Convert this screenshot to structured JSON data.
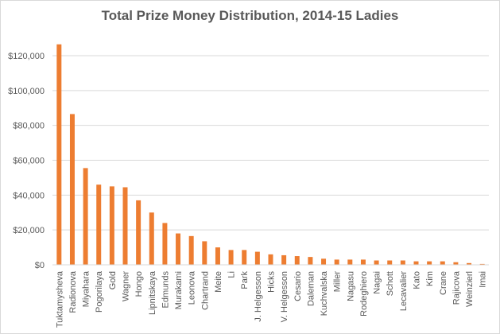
{
  "chart_data": {
    "type": "bar",
    "title": "Total Prize Money Distribution, 2014-15 Ladies",
    "xlabel": "",
    "ylabel": "",
    "ylim": [
      0,
      120000
    ],
    "y_ticks": [
      "$0",
      "$20,000",
      "$40,000",
      "$60,000",
      "$80,000",
      "$100,000",
      "$120,000"
    ],
    "grid": true,
    "legend": "none",
    "bar_color": "#ED7D31",
    "categories": [
      "Tuktamysheva",
      "Radionova",
      "Miyahara",
      "Pogorilaya",
      "Gold",
      "Wagner",
      "Hongo",
      "Lipnitskaya",
      "Edmunds",
      "Murakami",
      "Leonova",
      "Chartrand",
      "Meite",
      "Li",
      "Park",
      "J. Helgesson",
      "Hicks",
      "V. Helgesson",
      "Cesario",
      "Daleman",
      "Kuchvalska",
      "Miller",
      "Nagasu",
      "Rodeghiero",
      "Nagai",
      "Schott",
      "Lecavalier",
      "Kato",
      "Kim",
      "Crane",
      "Rajicova",
      "Weinzierl",
      "Imai"
    ],
    "values": [
      126500,
      86500,
      55500,
      46000,
      45000,
      44500,
      37000,
      30000,
      24000,
      18000,
      16500,
      13500,
      10000,
      8500,
      8500,
      7500,
      6000,
      5500,
      5000,
      4500,
      3500,
      3000,
      3000,
      3000,
      2500,
      2500,
      2500,
      2000,
      2000,
      2000,
      1500,
      1000,
      500
    ]
  }
}
